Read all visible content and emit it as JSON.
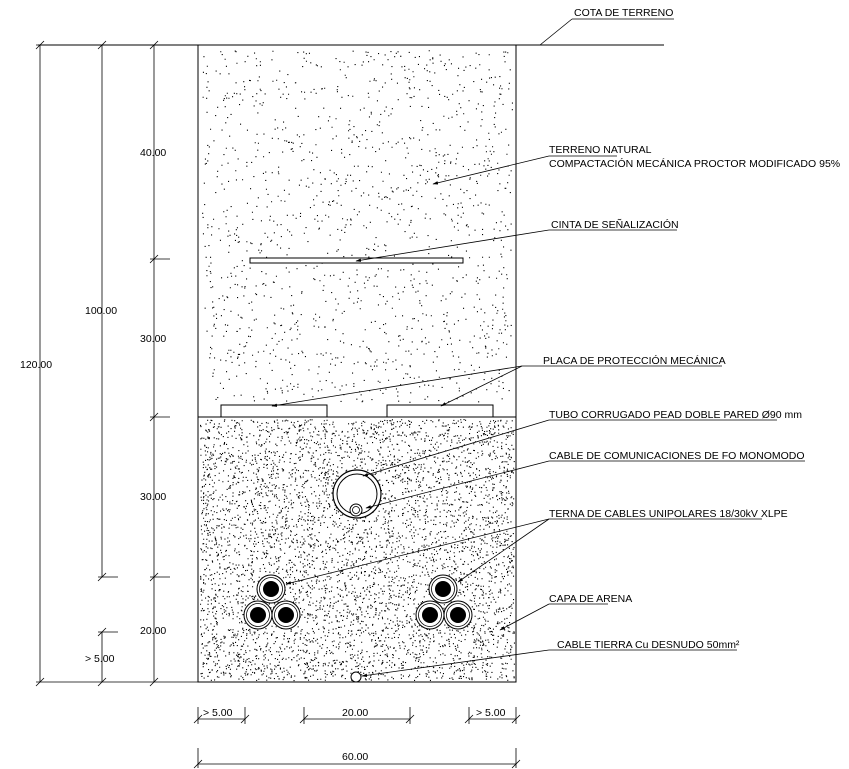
{
  "labels": {
    "cota_terreno": "COTA DE TERRENO",
    "terreno_natural_1": "TERRENO NATURAL",
    "terreno_natural_2": "COMPACTACIÓN MECÁNICA PROCTOR  MODIFICADO 95%",
    "cinta": "CINTA DE SEÑALIZACIÓN",
    "placa": "PLACA DE PROTECCIÓN MECÁNICA",
    "tubo": "TUBO CORRUGADO PEAD DOBLE PARED Ø90 mm",
    "cable_fo": "CABLE DE COMUNICACIONES DE FO MONOMODO",
    "terna": "TERNA DE CABLES UNIPOLARES 18/30kV XLPE",
    "capa_arena": "CAPA DE ARENA",
    "cable_tierra": "CABLE TIERRA Cu DESNUDO 50mm²"
  },
  "dimensions": {
    "v_40": "40.00",
    "v_30_top": "30.00",
    "v_30_bottom": "30.00",
    "v_20": "20.00",
    "v_100": "100.00",
    "v_120": "120.00",
    "v_gt5": "> 5.00",
    "h_gt5_left": "> 5.00",
    "h_20": "20.00",
    "h_gt5_right": "> 5.00",
    "h_60": "60.00"
  },
  "colors": {
    "line": "#000000",
    "background": "#ffffff"
  }
}
